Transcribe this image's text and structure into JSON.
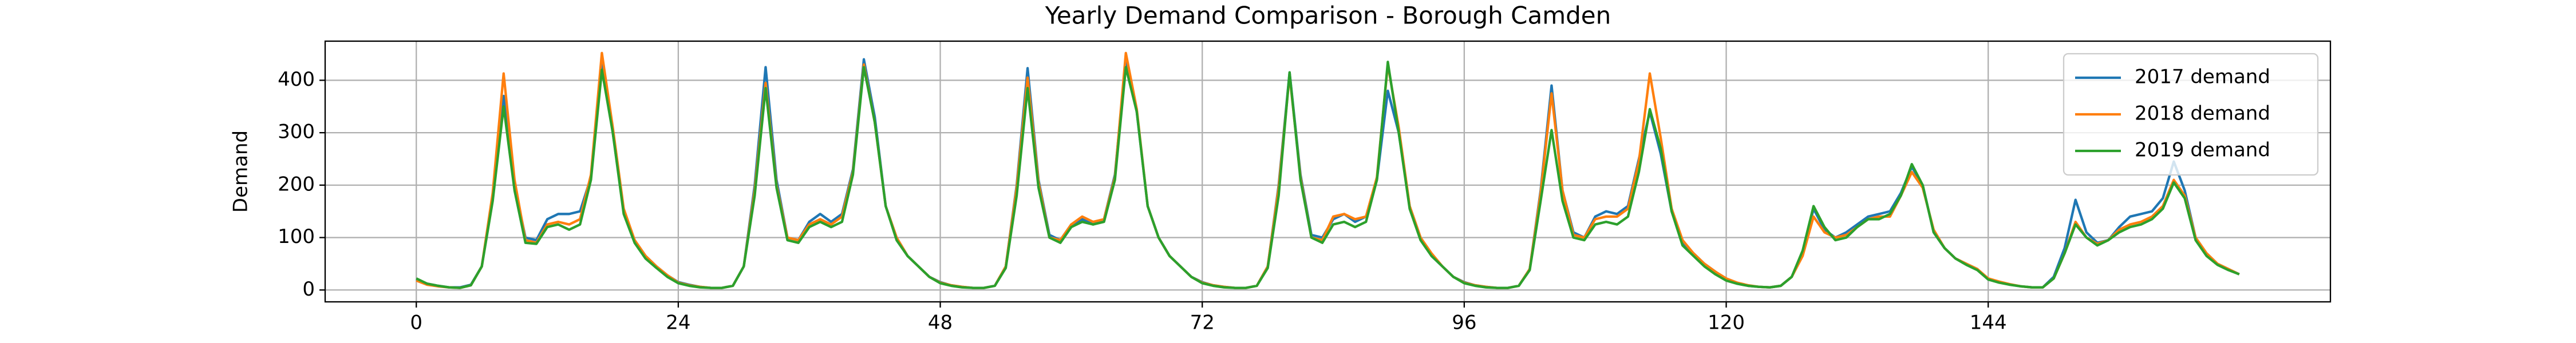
{
  "chart_data": {
    "type": "line",
    "title": "Yearly Demand Comparison - Borough Camden",
    "y_label": "Demand",
    "x": [
      0,
      1,
      2,
      3,
      4,
      5,
      6,
      7,
      8,
      9,
      10,
      11,
      12,
      13,
      14,
      15,
      16,
      17,
      18,
      19,
      20,
      21,
      22,
      23,
      24,
      25,
      26,
      27,
      28,
      29,
      30,
      31,
      32,
      33,
      34,
      35,
      36,
      37,
      38,
      39,
      40,
      41,
      42,
      43,
      44,
      45,
      46,
      47,
      48,
      49,
      50,
      51,
      52,
      53,
      54,
      55,
      56,
      57,
      58,
      59,
      60,
      61,
      62,
      63,
      64,
      65,
      66,
      67,
      68,
      69,
      70,
      71,
      72,
      73,
      74,
      75,
      76,
      77,
      78,
      79,
      80,
      81,
      82,
      83,
      84,
      85,
      86,
      87,
      88,
      89,
      90,
      91,
      92,
      93,
      94,
      95,
      96,
      97,
      98,
      99,
      100,
      101,
      102,
      103,
      104,
      105,
      106,
      107,
      108,
      109,
      110,
      111,
      112,
      113,
      114,
      115,
      116,
      117,
      118,
      119,
      120,
      121,
      122,
      123,
      124,
      125,
      126,
      127,
      128,
      129,
      130,
      131,
      132,
      133,
      134,
      135,
      136,
      137,
      138,
      139,
      140,
      141,
      142,
      143,
      144,
      145,
      146,
      147,
      148,
      149,
      150,
      151,
      152,
      153,
      154,
      155,
      156,
      157,
      158,
      159,
      160,
      161,
      162,
      163,
      164,
      165,
      166,
      167
    ],
    "series": [
      {
        "name": "2017 demand",
        "color": "#1f77b4",
        "values": [
          20,
          12,
          8,
          5,
          5,
          10,
          45,
          180,
          370,
          200,
          100,
          95,
          135,
          145,
          145,
          150,
          215,
          440,
          300,
          150,
          95,
          65,
          45,
          28,
          15,
          10,
          6,
          4,
          4,
          8,
          45,
          200,
          425,
          210,
          100,
          95,
          130,
          145,
          130,
          145,
          230,
          440,
          330,
          160,
          100,
          65,
          45,
          25,
          15,
          9,
          6,
          4,
          4,
          8,
          45,
          200,
          423,
          210,
          105,
          95,
          125,
          135,
          125,
          135,
          220,
          440,
          340,
          160,
          100,
          65,
          45,
          25,
          15,
          9,
          6,
          4,
          4,
          8,
          45,
          200,
          415,
          220,
          105,
          100,
          135,
          145,
          130,
          140,
          210,
          380,
          300,
          160,
          100,
          65,
          45,
          25,
          15,
          9,
          6,
          4,
          4,
          8,
          40,
          190,
          390,
          190,
          110,
          100,
          140,
          150,
          145,
          160,
          250,
          340,
          260,
          150,
          90,
          70,
          50,
          35,
          20,
          12,
          8,
          6,
          5,
          8,
          25,
          70,
          155,
          115,
          100,
          110,
          125,
          140,
          145,
          150,
          185,
          235,
          200,
          110,
          80,
          60,
          50,
          40,
          20,
          15,
          10,
          7,
          5,
          5,
          25,
          80,
          172,
          110,
          90,
          95,
          120,
          140,
          145,
          150,
          175,
          245,
          190,
          100,
          70,
          50,
          40,
          30
        ]
      },
      {
        "name": "2018 demand",
        "color": "#ff7f0e",
        "values": [
          18,
          10,
          7,
          5,
          4,
          9,
          45,
          185,
          413,
          210,
          95,
          90,
          125,
          130,
          125,
          135,
          220,
          452,
          310,
          155,
          95,
          65,
          45,
          28,
          14,
          9,
          6,
          4,
          4,
          8,
          45,
          190,
          395,
          200,
          100,
          95,
          125,
          135,
          125,
          140,
          225,
          430,
          320,
          160,
          100,
          65,
          45,
          25,
          14,
          9,
          6,
          4,
          4,
          8,
          45,
          195,
          405,
          205,
          100,
          95,
          125,
          140,
          130,
          135,
          215,
          452,
          345,
          160,
          100,
          65,
          45,
          25,
          14,
          9,
          6,
          4,
          4,
          8,
          45,
          195,
          410,
          215,
          100,
          95,
          140,
          145,
          135,
          140,
          215,
          430,
          310,
          160,
          100,
          70,
          45,
          25,
          14,
          9,
          6,
          4,
          4,
          8,
          40,
          185,
          375,
          190,
          105,
          100,
          135,
          140,
          140,
          155,
          245,
          413,
          290,
          155,
          95,
          70,
          50,
          35,
          22,
          14,
          9,
          6,
          5,
          8,
          25,
          65,
          140,
          110,
          100,
          105,
          120,
          135,
          140,
          140,
          180,
          225,
          195,
          115,
          80,
          60,
          50,
          40,
          22,
          16,
          11,
          7,
          5,
          5,
          22,
          70,
          130,
          100,
          88,
          95,
          115,
          125,
          130,
          140,
          160,
          210,
          180,
          100,
          70,
          50,
          40,
          30
        ]
      },
      {
        "name": "2019 demand",
        "color": "#2ca02c",
        "values": [
          22,
          12,
          8,
          5,
          4,
          9,
          45,
          170,
          350,
          190,
          90,
          88,
          120,
          125,
          115,
          125,
          210,
          420,
          300,
          145,
          90,
          60,
          42,
          25,
          13,
          8,
          5,
          4,
          4,
          8,
          45,
          180,
          385,
          195,
          95,
          90,
          120,
          130,
          120,
          130,
          220,
          425,
          320,
          160,
          95,
          65,
          45,
          25,
          13,
          8,
          5,
          4,
          4,
          8,
          42,
          180,
          385,
          195,
          100,
          90,
          120,
          130,
          125,
          130,
          210,
          425,
          340,
          160,
          100,
          65,
          45,
          25,
          13,
          8,
          5,
          4,
          4,
          8,
          42,
          180,
          415,
          210,
          100,
          90,
          125,
          130,
          120,
          130,
          210,
          435,
          300,
          155,
          95,
          65,
          45,
          25,
          13,
          8,
          5,
          4,
          4,
          8,
          38,
          170,
          305,
          170,
          100,
          95,
          125,
          130,
          125,
          140,
          225,
          345,
          270,
          150,
          85,
          65,
          45,
          30,
          18,
          12,
          8,
          6,
          5,
          8,
          25,
          75,
          160,
          120,
          95,
          100,
          120,
          135,
          135,
          145,
          180,
          240,
          200,
          110,
          80,
          60,
          48,
          38,
          20,
          14,
          10,
          7,
          5,
          5,
          22,
          70,
          125,
          100,
          85,
          95,
          110,
          120,
          125,
          135,
          155,
          205,
          175,
          95,
          65,
          48,
          38,
          30
        ]
      }
    ],
    "xlim": [
      -8.35,
      175.35
    ],
    "ylim": [
      -22.6,
      474.6
    ],
    "xticks": [
      0,
      24,
      48,
      72,
      96,
      120,
      144
    ],
    "yticks": [
      0,
      100,
      200,
      300,
      400
    ],
    "grid": true,
    "legend_loc": "upper right"
  }
}
